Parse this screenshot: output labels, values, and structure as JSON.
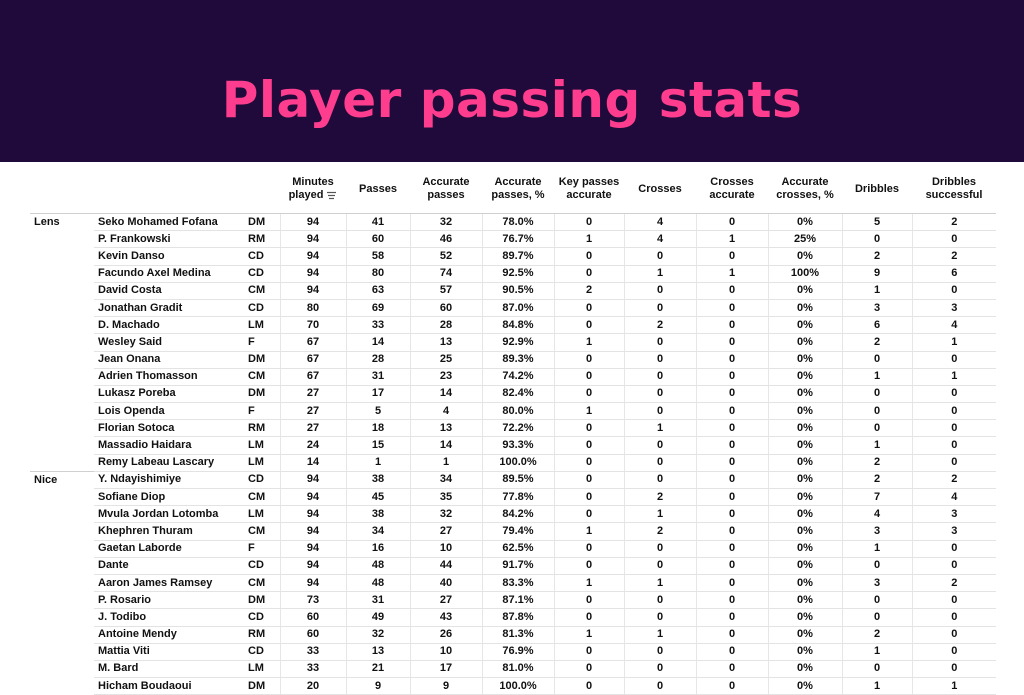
{
  "title": "Player passing stats",
  "chart_data": {
    "type": "table",
    "columns": [
      "Minutes played",
      "Passes",
      "Accurate passes",
      "Accurate passes, %",
      "Key passes accurate",
      "Crosses",
      "Crosses accurate",
      "Accurate crosses, %",
      "Dribbles",
      "Dribbles successful"
    ],
    "sorted_column": "Minutes played",
    "groups": [
      {
        "team": "Lens",
        "rows": [
          {
            "player": "Seko Mohamed Fofana",
            "pos": "DM",
            "values": [
              "94",
              "41",
              "32",
              "78.0%",
              "0",
              "4",
              "0",
              "0%",
              "5",
              "2"
            ]
          },
          {
            "player": "P. Frankowski",
            "pos": "RM",
            "values": [
              "94",
              "60",
              "46",
              "76.7%",
              "1",
              "4",
              "1",
              "25%",
              "0",
              "0"
            ]
          },
          {
            "player": "Kevin Danso",
            "pos": "CD",
            "values": [
              "94",
              "58",
              "52",
              "89.7%",
              "0",
              "0",
              "0",
              "0%",
              "2",
              "2"
            ]
          },
          {
            "player": "Facundo Axel Medina",
            "pos": "CD",
            "values": [
              "94",
              "80",
              "74",
              "92.5%",
              "0",
              "1",
              "1",
              "100%",
              "9",
              "6"
            ]
          },
          {
            "player": "David Costa",
            "pos": "CM",
            "values": [
              "94",
              "63",
              "57",
              "90.5%",
              "2",
              "0",
              "0",
              "0%",
              "1",
              "0"
            ]
          },
          {
            "player": "Jonathan Gradit",
            "pos": "CD",
            "values": [
              "80",
              "69",
              "60",
              "87.0%",
              "0",
              "0",
              "0",
              "0%",
              "3",
              "3"
            ]
          },
          {
            "player": "D. Machado",
            "pos": "LM",
            "values": [
              "70",
              "33",
              "28",
              "84.8%",
              "0",
              "2",
              "0",
              "0%",
              "6",
              "4"
            ]
          },
          {
            "player": "Wesley Said",
            "pos": "F",
            "values": [
              "67",
              "14",
              "13",
              "92.9%",
              "1",
              "0",
              "0",
              "0%",
              "2",
              "1"
            ]
          },
          {
            "player": "Jean Onana",
            "pos": "DM",
            "values": [
              "67",
              "28",
              "25",
              "89.3%",
              "0",
              "0",
              "0",
              "0%",
              "0",
              "0"
            ]
          },
          {
            "player": "Adrien Thomasson",
            "pos": "CM",
            "values": [
              "67",
              "31",
              "23",
              "74.2%",
              "0",
              "0",
              "0",
              "0%",
              "1",
              "1"
            ]
          },
          {
            "player": "Lukasz Poreba",
            "pos": "DM",
            "values": [
              "27",
              "17",
              "14",
              "82.4%",
              "0",
              "0",
              "0",
              "0%",
              "0",
              "0"
            ]
          },
          {
            "player": "Lois Openda",
            "pos": "F",
            "values": [
              "27",
              "5",
              "4",
              "80.0%",
              "1",
              "0",
              "0",
              "0%",
              "0",
              "0"
            ]
          },
          {
            "player": "Florian Sotoca",
            "pos": "RM",
            "values": [
              "27",
              "18",
              "13",
              "72.2%",
              "0",
              "1",
              "0",
              "0%",
              "0",
              "0"
            ]
          },
          {
            "player": "Massadio Haidara",
            "pos": "LM",
            "values": [
              "24",
              "15",
              "14",
              "93.3%",
              "0",
              "0",
              "0",
              "0%",
              "1",
              "0"
            ]
          },
          {
            "player": "Remy Labeau Lascary",
            "pos": "LM",
            "values": [
              "14",
              "1",
              "1",
              "100.0%",
              "0",
              "0",
              "0",
              "0%",
              "2",
              "0"
            ]
          }
        ]
      },
      {
        "team": "Nice",
        "rows": [
          {
            "player": "Y. Ndayishimiye",
            "pos": "CD",
            "values": [
              "94",
              "38",
              "34",
              "89.5%",
              "0",
              "0",
              "0",
              "0%",
              "2",
              "2"
            ]
          },
          {
            "player": "Sofiane Diop",
            "pos": "CM",
            "values": [
              "94",
              "45",
              "35",
              "77.8%",
              "0",
              "2",
              "0",
              "0%",
              "7",
              "4"
            ]
          },
          {
            "player": "Mvula Jordan Lotomba",
            "pos": "LM",
            "values": [
              "94",
              "38",
              "32",
              "84.2%",
              "0",
              "1",
              "0",
              "0%",
              "4",
              "3"
            ]
          },
          {
            "player": "Khephren Thuram",
            "pos": "CM",
            "values": [
              "94",
              "34",
              "27",
              "79.4%",
              "1",
              "2",
              "0",
              "0%",
              "3",
              "3"
            ]
          },
          {
            "player": "Gaetan Laborde",
            "pos": "F",
            "values": [
              "94",
              "16",
              "10",
              "62.5%",
              "0",
              "0",
              "0",
              "0%",
              "1",
              "0"
            ]
          },
          {
            "player": "Dante",
            "pos": "CD",
            "values": [
              "94",
              "48",
              "44",
              "91.7%",
              "0",
              "0",
              "0",
              "0%",
              "0",
              "0"
            ]
          },
          {
            "player": "Aaron James Ramsey",
            "pos": "CM",
            "values": [
              "94",
              "48",
              "40",
              "83.3%",
              "1",
              "1",
              "0",
              "0%",
              "3",
              "2"
            ]
          },
          {
            "player": "P. Rosario",
            "pos": "DM",
            "values": [
              "73",
              "31",
              "27",
              "87.1%",
              "0",
              "0",
              "0",
              "0%",
              "0",
              "0"
            ]
          },
          {
            "player": "J. Todibo",
            "pos": "CD",
            "values": [
              "60",
              "49",
              "43",
              "87.8%",
              "0",
              "0",
              "0",
              "0%",
              "0",
              "0"
            ]
          },
          {
            "player": "Antoine Mendy",
            "pos": "RM",
            "values": [
              "60",
              "32",
              "26",
              "81.3%",
              "1",
              "1",
              "0",
              "0%",
              "2",
              "0"
            ]
          },
          {
            "player": "Mattia Viti",
            "pos": "CD",
            "values": [
              "33",
              "13",
              "10",
              "76.9%",
              "0",
              "0",
              "0",
              "0%",
              "1",
              "0"
            ]
          },
          {
            "player": "M. Bard",
            "pos": "LM",
            "values": [
              "33",
              "21",
              "17",
              "81.0%",
              "0",
              "0",
              "0",
              "0%",
              "0",
              "0"
            ]
          },
          {
            "player": "Hicham Boudaoui",
            "pos": "DM",
            "values": [
              "20",
              "9",
              "9",
              "100.0%",
              "0",
              "0",
              "0",
              "0%",
              "1",
              "1"
            ]
          }
        ]
      }
    ]
  },
  "colors": {
    "banner_bg": "#1f0a3b",
    "title_color": "#ff3d8e"
  },
  "icons": {
    "sort": "sort-descending-icon"
  }
}
